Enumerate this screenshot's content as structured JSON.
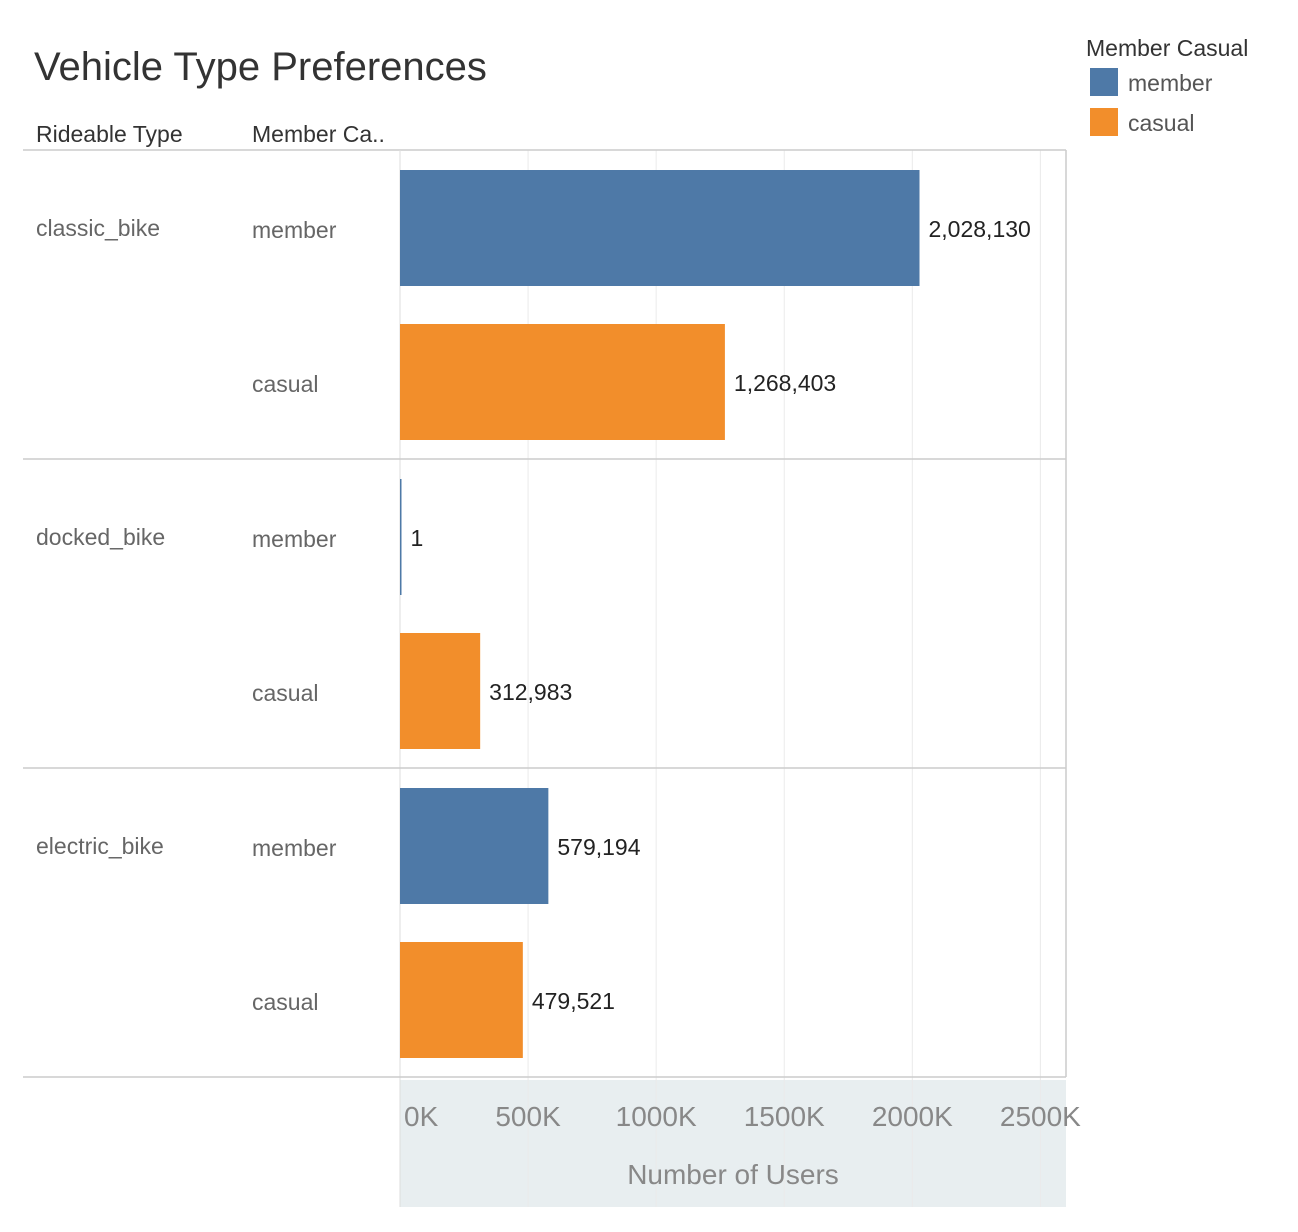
{
  "chart_data": {
    "type": "bar",
    "orientation": "horizontal",
    "title": "Vehicle Type Preferences",
    "row_header_1": "Rideable Type",
    "row_header_2": "Member Ca..",
    "xlabel": "Number of Users",
    "xlim": [
      0,
      2600000
    ],
    "xticks": [
      0,
      500000,
      1000000,
      1500000,
      2000000,
      2500000
    ],
    "xtick_labels": [
      "0K",
      "500K",
      "1000K",
      "1500K",
      "2000K",
      "2500K"
    ],
    "grid": true,
    "legend": {
      "title": "Member Casual",
      "placement": "top-right",
      "items": [
        {
          "label": "member",
          "color": "#4e79a7"
        },
        {
          "label": "casual",
          "color": "#f28e2b"
        }
      ]
    },
    "groups": [
      {
        "name": "classic_bike",
        "bars": [
          {
            "segment": "member",
            "value": 2028130,
            "label": "2,028,130"
          },
          {
            "segment": "casual",
            "value": 1268403,
            "label": "1,268,403"
          }
        ]
      },
      {
        "name": "docked_bike",
        "bars": [
          {
            "segment": "member",
            "value": 1,
            "label": "1"
          },
          {
            "segment": "casual",
            "value": 312983,
            "label": "312,983"
          }
        ]
      },
      {
        "name": "electric_bike",
        "bars": [
          {
            "segment": "member",
            "value": 579194,
            "label": "579,194"
          },
          {
            "segment": "casual",
            "value": 479521,
            "label": "479,521"
          }
        ]
      }
    ]
  }
}
